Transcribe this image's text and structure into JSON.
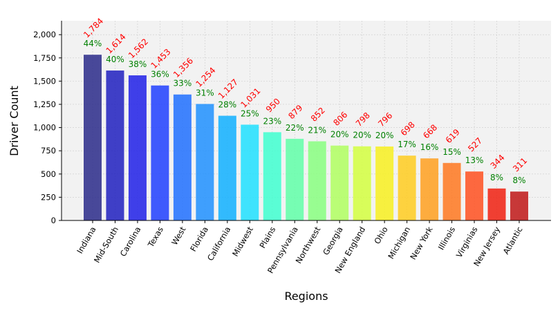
{
  "chart_data": {
    "type": "bar",
    "title": "",
    "xlabel": "Regions",
    "ylabel": "Driver Count",
    "ylim": [
      0,
      2150
    ],
    "yticks": [
      0,
      250,
      500,
      750,
      1000,
      1250,
      1500,
      1750,
      2000
    ],
    "ytick_labels": [
      "0",
      "250",
      "500",
      "750",
      "1,000",
      "1,250",
      "1,500",
      "1,750",
      "2,000"
    ],
    "grid": true,
    "categories": [
      "Indiana",
      "Mid-South",
      "Carolina",
      "Texas",
      "West",
      "Florida",
      "California",
      "Midwest",
      "Plains",
      "Pennsylvania",
      "Northwest",
      "Georgia",
      "New England",
      "Ohio",
      "Michigan",
      "New York",
      "Illinois",
      "Virginias",
      "New Jersey",
      "Atlantic"
    ],
    "values": [
      1784,
      1614,
      1562,
      1453,
      1356,
      1254,
      1127,
      1031,
      950,
      879,
      852,
      806,
      798,
      796,
      698,
      668,
      619,
      527,
      344,
      311
    ],
    "value_labels": [
      "1,784",
      "1,614",
      "1,562",
      "1,453",
      "1,356",
      "1,254",
      "1,127",
      "1,031",
      "950",
      "879",
      "852",
      "806",
      "798",
      "796",
      "698",
      "668",
      "619",
      "527",
      "344",
      "311"
    ],
    "percent_labels": [
      "44%",
      "40%",
      "38%",
      "36%",
      "33%",
      "31%",
      "28%",
      "25%",
      "23%",
      "22%",
      "21%",
      "20%",
      "20%",
      "20%",
      "17%",
      "16%",
      "15%",
      "13%",
      "8%",
      "8%"
    ],
    "colors": [
      "#2a2a8a",
      "#2020c0",
      "#2020e8",
      "#2040ff",
      "#2070ff",
      "#2090ff",
      "#10b0ff",
      "#20e0ff",
      "#40ffd0",
      "#60ffa8",
      "#88ff80",
      "#b0ff60",
      "#d4ff40",
      "#f8f020",
      "#ffcc20",
      "#ffa020",
      "#ff7820",
      "#ff5020",
      "#f02010",
      "#c01818"
    ],
    "value_label_color": "#ff0000",
    "percent_label_color": "#008000",
    "plot_background": "#f2f2f2"
  }
}
